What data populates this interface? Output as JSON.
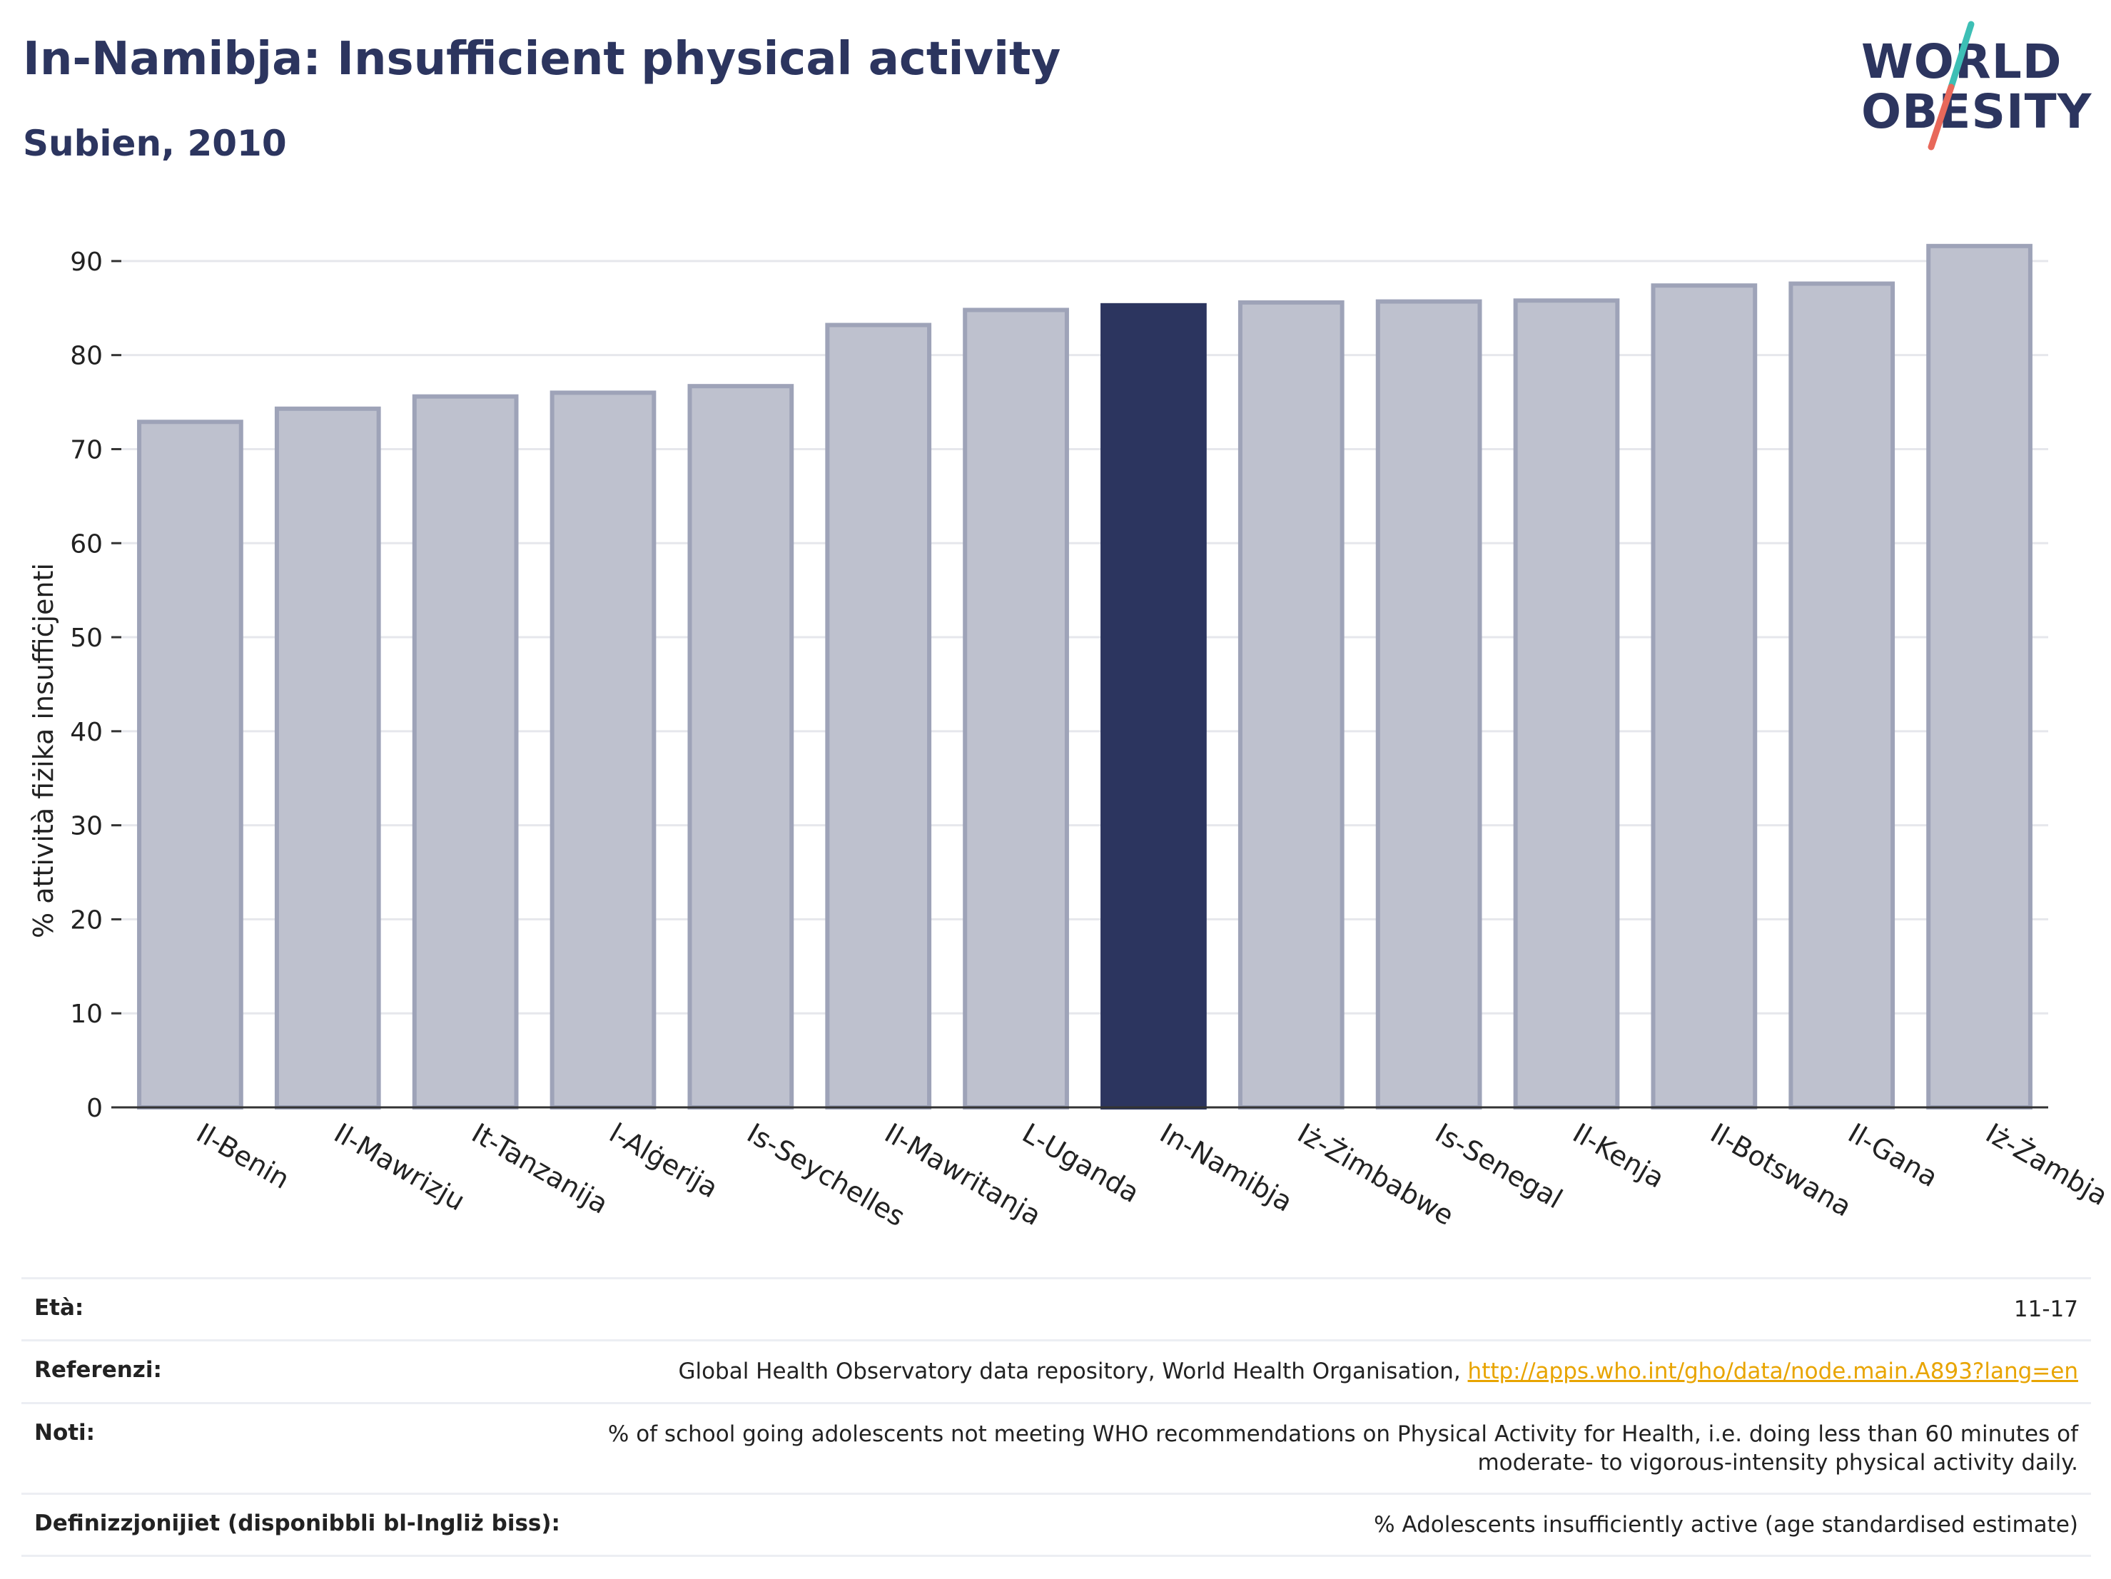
{
  "header": {
    "title": "In-Namibja: Insufficient physical activity",
    "subtitle": "Subien, 2010"
  },
  "logo": {
    "line1": "WORLD",
    "line2": "OBESITY",
    "accent_teal": "#3dbfb5",
    "accent_coral": "#e8685a"
  },
  "chart_data": {
    "type": "bar",
    "title": "In-Namibja: Insufficient physical activity",
    "subtitle": "Subien, 2010",
    "ylabel": "% attività fiżika insuffiċjenti",
    "xlabel": "",
    "ylim": [
      0,
      95
    ],
    "yticks": [
      0,
      10,
      20,
      30,
      40,
      50,
      60,
      70,
      80,
      90
    ],
    "grid": true,
    "highlight": "In-Namibja",
    "colors": {
      "highlight": "#2c355f",
      "other": "#bec1ce",
      "other_border": "#9ea3b8"
    },
    "categories": [
      "Il-Benin",
      "Il-Mawrizju",
      "It-Tanzanija",
      "l-Alġerija",
      "Is-Seychelles",
      "Il-Mawritanja",
      "L-Uganda",
      "In-Namibja",
      "Iż-Żimbabwe",
      "Is-Senegal",
      "Il-Kenja",
      "Il-Botswana",
      "Il-Gana",
      "Iż-Żambja"
    ],
    "values": [
      72.9,
      74.3,
      75.6,
      76.0,
      76.7,
      83.2,
      84.8,
      85.3,
      85.6,
      85.7,
      85.8,
      87.4,
      87.6,
      91.6
    ]
  },
  "meta": [
    {
      "label": "Età:",
      "value": "11-17"
    },
    {
      "label": "Referenzi:",
      "value": "Global Health Observatory data repository, World Health Organisation, ",
      "link": "http://apps.who.int/gho/data/node.main.A893?lang=en"
    },
    {
      "label": "Noti:",
      "value": "% of school going adolescents not meeting WHO recommendations on Physical Activity for Health, i.e. doing less than 60 minutes of moderate- to vigorous-intensity physical activity daily."
    },
    {
      "label": "Definizzjonijiet (disponibbli bl-Ingliż biss):",
      "value": "% Adolescents insufficiently active (age standardised estimate)"
    }
  ]
}
